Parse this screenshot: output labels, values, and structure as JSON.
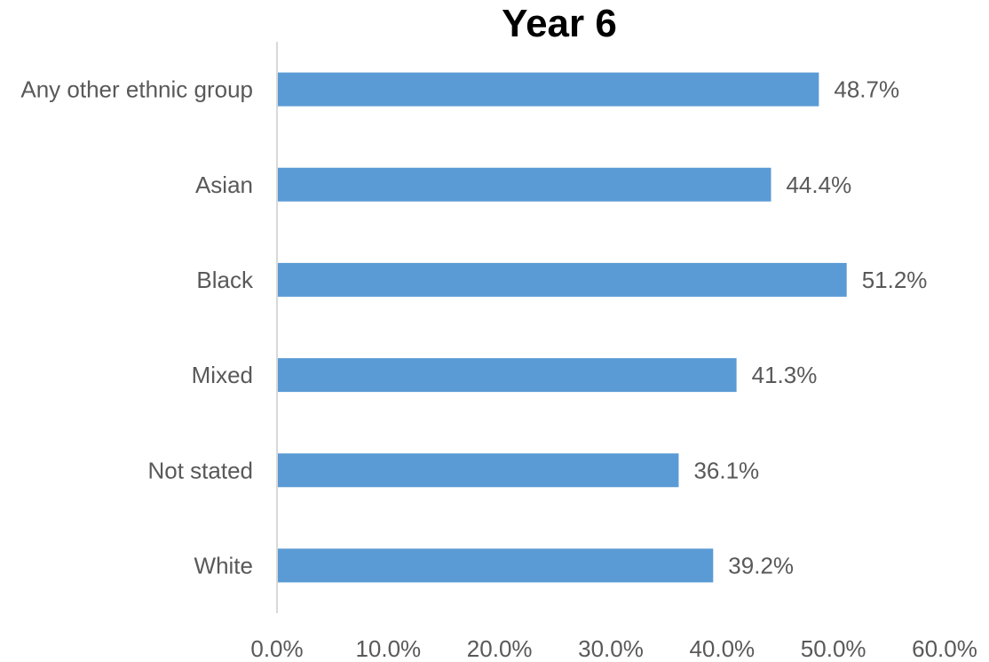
{
  "chart_data": {
    "type": "bar",
    "orientation": "horizontal",
    "title": "Year 6",
    "categories": [
      "Any other ethnic group",
      "Asian",
      "Black",
      "Mixed",
      "Not stated",
      "White"
    ],
    "values": [
      48.7,
      44.4,
      51.2,
      41.3,
      36.1,
      39.2
    ],
    "data_labels": [
      "48.7%",
      "44.4%",
      "51.2%",
      "41.3%",
      "36.1%",
      "39.2%"
    ],
    "xlim": [
      0,
      60
    ],
    "xticks": [
      0,
      10,
      20,
      30,
      40,
      50,
      60
    ],
    "xtick_labels": [
      "0.0%",
      "10.0%",
      "20.0%",
      "30.0%",
      "40.0%",
      "50.0%",
      "60.0%"
    ],
    "xlabel": "",
    "ylabel": "",
    "grid": false,
    "legend": "none",
    "bar_color": "#5b9bd5",
    "axis_color": "#d9d9d9",
    "label_color": "#595959"
  }
}
